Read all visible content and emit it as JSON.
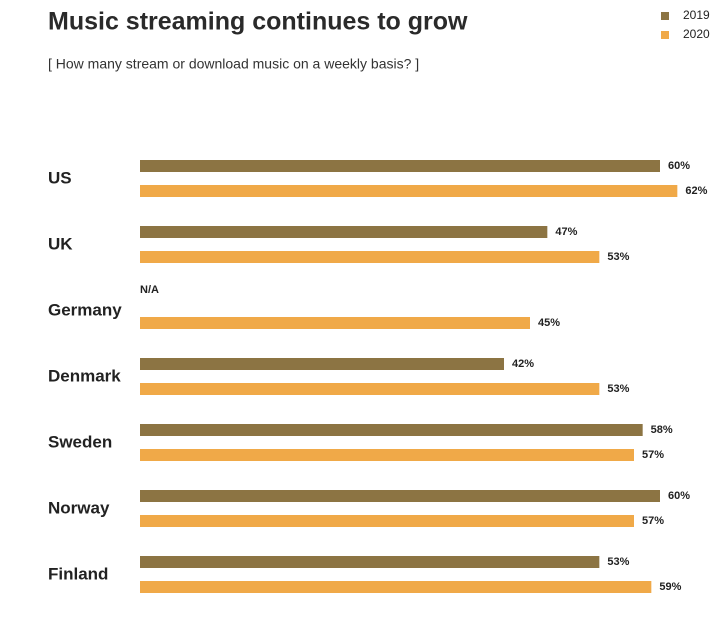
{
  "chart_data": {
    "type": "bar",
    "orientation": "horizontal",
    "title": "Music streaming continues to grow",
    "subtitle": "[ How many stream or download music on a weekly basis? ]",
    "categories": [
      "US",
      "UK",
      "Germany",
      "Denmark",
      "Sweden",
      "Norway",
      "Finland"
    ],
    "series": [
      {
        "name": "2019",
        "color": "#8c7443",
        "values": [
          60,
          47,
          null,
          42,
          58,
          60,
          53
        ],
        "value_labels": [
          "60%",
          "47%",
          "N/A",
          "42%",
          "58%",
          "60%",
          "53%"
        ]
      },
      {
        "name": "2020",
        "color": "#f0a948",
        "values": [
          62,
          53,
          45,
          53,
          57,
          57,
          59
        ],
        "value_labels": [
          "62%",
          "53%",
          "45%",
          "53%",
          "57%",
          "57%",
          "59%"
        ]
      }
    ],
    "legend": "top-right"
  }
}
